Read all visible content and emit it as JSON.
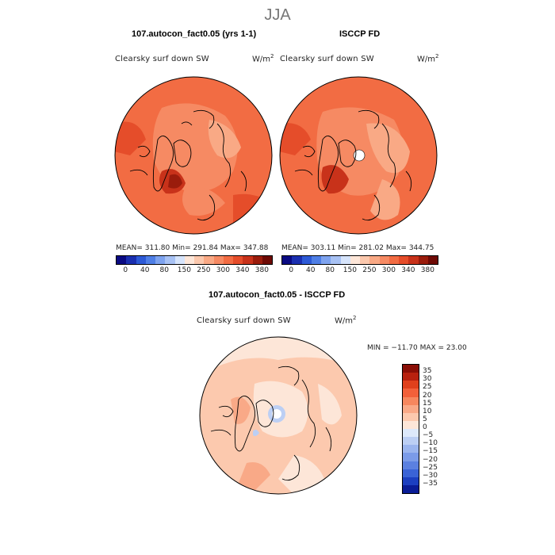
{
  "season": "JJA",
  "panels": [
    {
      "title": "107.autocon_fact0.05 (yrs 1-1)",
      "variable": "Clearsky surf down SW",
      "unit": "W/m",
      "unit_power": "2",
      "stats": "MEAN= 311.80   Min= 291.84   Max= 347.88",
      "colorbar_ticks": [
        "0",
        "40",
        "80",
        "150",
        "250",
        "300",
        "340",
        "380"
      ]
    },
    {
      "title": "ISCCP FD",
      "variable": "Clearsky surf down SW",
      "unit": "W/m",
      "unit_power": "2",
      "stats": "MEAN= 303.11   Min= 281.02   Max= 344.75",
      "colorbar_ticks": [
        "0",
        "40",
        "80",
        "150",
        "250",
        "300",
        "340",
        "380"
      ]
    }
  ],
  "diff": {
    "title": "107.autocon_fact0.05 - ISCCP FD",
    "variable": "Clearsky surf down SW",
    "unit": "W/m",
    "unit_power": "2",
    "minmax": "MIN = −11.70  MAX =  23.00",
    "colorbar_ticks": [
      "35",
      "30",
      "25",
      "20",
      "15",
      "10",
      "5",
      "0",
      "−5",
      "−10",
      "−15",
      "−20",
      "−25",
      "−30",
      "−35"
    ]
  },
  "colors": {
    "abs_scale": [
      "#0a0a82",
      "#1a2fb0",
      "#2d5ad6",
      "#4f7fe6",
      "#7ea3ef",
      "#a8c2f4",
      "#d6e4fb",
      "#fde6d8",
      "#fbc8ad",
      "#f9a985",
      "#f68a63",
      "#f26c43",
      "#e54d2a",
      "#c8321a",
      "#9a1c0c",
      "#6e0a05"
    ],
    "diff_scale": [
      "#8a0e06",
      "#b8210f",
      "#e0401c",
      "#f2603a",
      "#f6875e",
      "#f9a987",
      "#fcc9ae",
      "#fde6d8",
      "#dde9fb",
      "#bccff4",
      "#9bb5ee",
      "#7b9be8",
      "#5b80e0",
      "#3a63d6",
      "#1c3fc0",
      "#0a1c96"
    ]
  }
}
